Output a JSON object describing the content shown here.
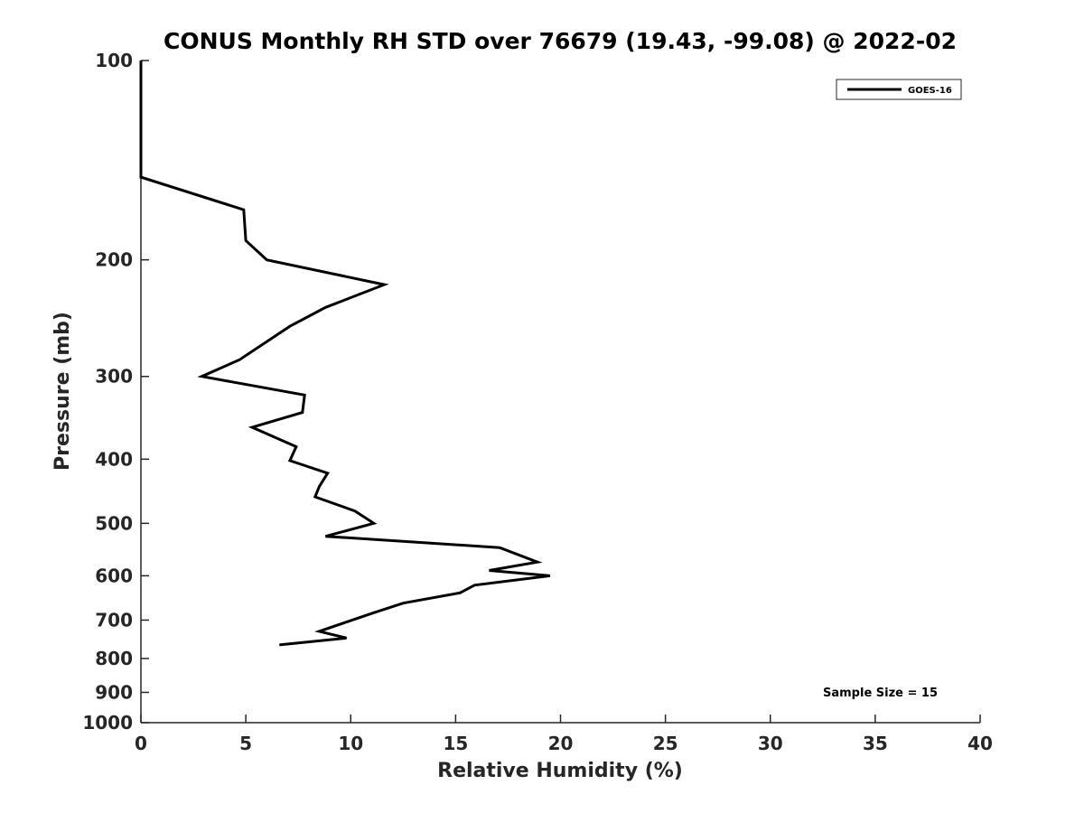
{
  "chart_data": {
    "type": "line",
    "title": "CONUS Monthly RH STD over 76679 (19.43, -99.08) @ 2022-02",
    "xlabel": "Relative Humidity (%)",
    "ylabel": "Pressure (mb)",
    "xlim": [
      0,
      40
    ],
    "ylim": [
      1000,
      100
    ],
    "yscale": "log",
    "y_reversed": true,
    "xticks": [
      0,
      5,
      10,
      15,
      20,
      25,
      30,
      35,
      40
    ],
    "yticks": [
      100,
      200,
      300,
      400,
      500,
      600,
      700,
      800,
      900,
      1000
    ],
    "grid": false,
    "legend_position": "top-right",
    "annotation": "Sample Size = 15",
    "series": [
      {
        "name": "GOES-16",
        "color": "#000000",
        "points": [
          [
            0.0,
            100
          ],
          [
            0.0,
            125
          ],
          [
            0.0,
            150
          ],
          [
            4.9,
            168
          ],
          [
            5.0,
            187
          ],
          [
            6.0,
            200
          ],
          [
            11.6,
            218
          ],
          [
            8.8,
            236
          ],
          [
            7.1,
            252
          ],
          [
            4.7,
            283
          ],
          [
            2.9,
            300
          ],
          [
            7.8,
            320
          ],
          [
            7.7,
            340
          ],
          [
            5.3,
            358
          ],
          [
            7.4,
            383
          ],
          [
            7.1,
            402
          ],
          [
            8.9,
            420
          ],
          [
            8.5,
            440
          ],
          [
            8.3,
            456
          ],
          [
            10.2,
            479
          ],
          [
            11.1,
            500
          ],
          [
            8.8,
            523
          ],
          [
            17.1,
            544
          ],
          [
            18.9,
            572
          ],
          [
            16.6,
            589
          ],
          [
            19.5,
            600
          ],
          [
            15.9,
            620
          ],
          [
            15.2,
            637
          ],
          [
            12.5,
            660
          ],
          [
            11.0,
            684
          ],
          [
            9.9,
            703
          ],
          [
            8.5,
            728
          ],
          [
            9.8,
            745
          ],
          [
            6.6,
            763
          ]
        ]
      }
    ]
  }
}
